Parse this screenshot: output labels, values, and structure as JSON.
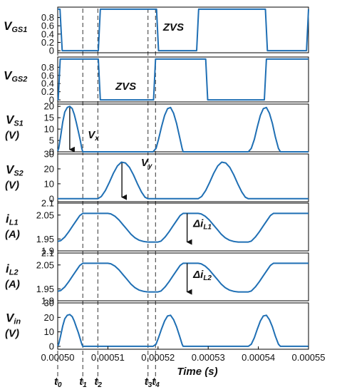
{
  "chart_data": {
    "type": "line",
    "xlabel": "Time (s)",
    "xlim": [
      0.0005,
      0.00055
    ],
    "x_ticks": [
      0.0005,
      0.00051,
      0.00052,
      0.00053,
      0.00054,
      0.00055
    ],
    "x_tick_labels": [
      "0.00050",
      "0.00051",
      "0.00052",
      "0.00053",
      "0.00054",
      "0.00055"
    ],
    "line_color": "#1f6fb4",
    "time_markers": [
      {
        "name": "t0",
        "sub": "0",
        "x": 0.0005
      },
      {
        "name": "t1",
        "sub": "1",
        "x": 0.000505
      },
      {
        "name": "t2",
        "sub": "2",
        "x": 0.000508
      },
      {
        "name": "t3",
        "sub": "3",
        "x": 0.000518
      },
      {
        "name": "t4",
        "sub": "4",
        "x": 0.0005195
      }
    ],
    "panels": [
      {
        "id": "vgs1",
        "label_main": "V",
        "label_sub": "GS1",
        "unit": "",
        "ylim": [
          -0.05,
          1.05
        ],
        "y_ticks": [
          0,
          0.2,
          0.4,
          0.6,
          0.8
        ],
        "y_tick_labels": [
          "0",
          "0.2",
          "0.4",
          "0.6",
          "0.8"
        ],
        "x": [
          0.0005,
          0.00050045,
          0.0005009,
          0.0005081,
          0.0005085,
          0.0005197,
          0.0005201,
          0.0005277,
          0.0005281,
          0.0005414,
          0.0005418,
          0.0005496,
          0.00055
        ],
        "y": [
          1,
          1,
          0,
          0,
          1,
          1,
          0,
          0,
          1,
          1,
          0,
          0,
          1
        ]
      },
      {
        "id": "vgs2",
        "label_main": "V",
        "label_sub": "GS2",
        "unit": "",
        "ylim": [
          -0.05,
          1.05
        ],
        "y_ticks": [
          0,
          0.2,
          0.4,
          0.6,
          0.8
        ],
        "y_tick_labels": [
          "0",
          "0.2",
          "0.4",
          "0.6",
          "0.8"
        ],
        "x": [
          0.0005,
          0.0005001,
          0.0005005,
          0.0005081,
          0.0005085,
          0.0005191,
          0.0005195,
          0.0005295,
          0.0005299,
          0.0005412,
          0.0005416,
          0.00055
        ],
        "y": [
          0,
          0,
          1,
          1,
          0,
          0,
          1,
          1,
          0,
          0,
          1,
          1
        ]
      },
      {
        "id": "vs1",
        "label_main": "V",
        "label_sub": "S1",
        "unit": "(V)",
        "ylim": [
          0,
          21
        ],
        "y_ticks": [
          0,
          5,
          10,
          15,
          20
        ],
        "y_tick_labels": [
          "0",
          "5",
          "10",
          "15",
          "20"
        ],
        "x": [
          0.0005,
          0.0005002,
          0.0005006,
          0.000501,
          0.0005014,
          0.0005019,
          0.0005024,
          0.0005029,
          0.0005033,
          0.0005037,
          0.0005041,
          0.0005045,
          0.0005048,
          0.000505,
          0.00051,
          0.000519,
          0.0005196,
          0.0005201,
          0.0005207,
          0.0005213,
          0.0005219,
          0.0005225,
          0.0005231,
          0.0005237,
          0.0005243,
          0.0005248,
          0.000525,
          0.000538,
          0.0005386,
          0.0005392,
          0.0005398,
          0.0005404,
          0.000541,
          0.0005416,
          0.0005422,
          0.0005428,
          0.0005434,
          0.000544,
          0.0005444,
          0.00055
        ],
        "y": [
          0.3,
          1.5,
          7,
          13,
          17.5,
          19.5,
          20,
          19,
          16.5,
          13,
          9,
          5,
          1.5,
          0,
          0,
          0,
          1.5,
          5.5,
          11,
          16,
          19,
          19.5,
          17,
          12.5,
          6.5,
          1.5,
          0,
          0,
          1.5,
          5.5,
          11,
          16,
          19,
          19.5,
          17,
          12.5,
          6.5,
          1.5,
          0,
          0
        ]
      },
      {
        "id": "vs2",
        "label_main": "V",
        "label_sub": "S2",
        "unit": "(V)",
        "ylim": [
          -2,
          30
        ],
        "y_ticks": [
          0,
          10,
          20,
          30
        ],
        "y_tick_labels": [
          "0",
          "10",
          "20",
          "30"
        ],
        "x": [
          0.0005,
          0.000508,
          0.0005087,
          0.0005095,
          0.0005103,
          0.0005111,
          0.0005119,
          0.0005127,
          0.0005135,
          0.0005143,
          0.0005151,
          0.0005159,
          0.0005167,
          0.0005174,
          0.000518,
          0.000528,
          0.0005287,
          0.0005295,
          0.0005303,
          0.0005311,
          0.0005319,
          0.0005327,
          0.0005335,
          0.0005343,
          0.0005351,
          0.0005359,
          0.0005367,
          0.0005374,
          0.000538,
          0.00055
        ],
        "y": [
          0,
          0,
          1.5,
          5.5,
          11,
          17,
          22,
          24.5,
          24,
          21,
          16,
          10,
          4.5,
          1,
          0,
          0,
          1.5,
          5.5,
          11,
          17,
          22,
          24.5,
          24,
          21,
          16,
          10,
          4.5,
          1,
          0,
          0
        ]
      },
      {
        "id": "il1",
        "label_main": "i",
        "label_sub": "L1",
        "unit": "(A)",
        "ylim": [
          1.9,
          2.1
        ],
        "y_ticks": [
          1.9,
          1.95,
          2.05,
          2.1
        ],
        "y_tick_labels": [
          "1.9",
          "1.95",
          "2.05",
          "2.1"
        ],
        "x": [
          0.0005,
          0.0005006,
          0.0005014,
          0.0005022,
          0.000503,
          0.0005038,
          0.0005044,
          0.000505,
          0.00051,
          0.0005106,
          0.0005114,
          0.0005122,
          0.000513,
          0.0005138,
          0.0005146,
          0.0005154,
          0.0005162,
          0.000517,
          0.0005176,
          0.000518,
          0.00052,
          0.0005206,
          0.0005214,
          0.0005222,
          0.000523,
          0.0005238,
          0.0005244,
          0.000525,
          0.000528,
          0.0005286,
          0.0005294,
          0.0005302,
          0.000531,
          0.0005318,
          0.0005326,
          0.0005334,
          0.0005342,
          0.000535,
          0.0005356,
          0.000536,
          0.000538,
          0.0005386,
          0.0005394,
          0.0005402,
          0.000541,
          0.0005418,
          0.0005424,
          0.000543,
          0.00055
        ],
        "y": [
          1.94,
          1.943,
          1.958,
          1.98,
          2.005,
          2.03,
          2.048,
          2.057,
          2.057,
          2.055,
          2.045,
          2.03,
          2.01,
          1.99,
          1.97,
          1.955,
          1.945,
          1.94,
          1.938,
          1.937,
          1.937,
          1.941,
          1.958,
          1.98,
          2.005,
          2.03,
          2.048,
          2.057,
          2.057,
          2.055,
          2.045,
          2.03,
          2.01,
          1.99,
          1.97,
          1.955,
          1.945,
          1.94,
          1.938,
          1.937,
          1.937,
          1.941,
          1.958,
          1.98,
          2.005,
          2.03,
          2.048,
          2.057,
          2.057
        ]
      },
      {
        "id": "il2",
        "label_main": "i",
        "label_sub": "L2",
        "unit": "(A)",
        "ylim": [
          1.9,
          2.1
        ],
        "y_ticks": [
          1.9,
          1.95,
          2.05,
          2.1
        ],
        "y_tick_labels": [
          "1.9",
          "1.95",
          "2.05",
          "2.1"
        ],
        "x": [
          0.0005,
          0.0005006,
          0.0005014,
          0.0005022,
          0.000503,
          0.0005038,
          0.0005044,
          0.000505,
          0.00051,
          0.0005106,
          0.0005114,
          0.0005122,
          0.000513,
          0.0005138,
          0.0005146,
          0.0005154,
          0.0005162,
          0.000517,
          0.0005176,
          0.000518,
          0.00052,
          0.0005206,
          0.0005214,
          0.0005222,
          0.000523,
          0.0005238,
          0.0005244,
          0.000525,
          0.000528,
          0.0005286,
          0.0005294,
          0.0005302,
          0.000531,
          0.0005318,
          0.0005326,
          0.0005334,
          0.0005342,
          0.000535,
          0.0005356,
          0.000536,
          0.000538,
          0.0005386,
          0.0005394,
          0.0005402,
          0.000541,
          0.0005418,
          0.0005424,
          0.000543,
          0.00055
        ],
        "y": [
          1.94,
          1.943,
          1.958,
          1.98,
          2.005,
          2.03,
          2.048,
          2.057,
          2.057,
          2.055,
          2.045,
          2.03,
          2.01,
          1.99,
          1.97,
          1.955,
          1.945,
          1.94,
          1.938,
          1.937,
          1.937,
          1.941,
          1.958,
          1.98,
          2.005,
          2.03,
          2.048,
          2.057,
          2.057,
          2.055,
          2.045,
          2.03,
          2.01,
          1.99,
          1.97,
          1.955,
          1.945,
          1.94,
          1.938,
          1.937,
          1.937,
          1.941,
          1.958,
          1.98,
          2.005,
          2.03,
          2.048,
          2.057,
          2.057
        ]
      },
      {
        "id": "vin",
        "label_main": "V",
        "label_sub": "in",
        "unit": "(V)",
        "ylim": [
          -2,
          30
        ],
        "y_ticks": [
          0,
          10,
          20,
          30
        ],
        "y_tick_labels": [
          "0",
          "10",
          "20",
          "30"
        ],
        "x": [
          0.0005,
          0.0005002,
          0.0005006,
          0.000501,
          0.0005014,
          0.0005019,
          0.0005024,
          0.0005029,
          0.0005033,
          0.0005037,
          0.0005041,
          0.0005045,
          0.0005048,
          0.000505,
          0.000519,
          0.0005196,
          0.0005201,
          0.0005207,
          0.0005213,
          0.0005219,
          0.0005225,
          0.0005231,
          0.0005237,
          0.0005243,
          0.0005248,
          0.000525,
          0.000538,
          0.0005386,
          0.0005392,
          0.0005398,
          0.0005404,
          0.000541,
          0.0005416,
          0.0005422,
          0.0005428,
          0.0005434,
          0.000544,
          0.0005444,
          0.00055
        ],
        "y": [
          0.3,
          1.5,
          7.5,
          14,
          19,
          21.5,
          22,
          20.5,
          17.5,
          13.5,
          9.5,
          5,
          1.5,
          0,
          0,
          1.5,
          6,
          12,
          17.5,
          21,
          21.5,
          18.5,
          13.5,
          7,
          1.5,
          0,
          0,
          1.5,
          6,
          12,
          17.5,
          21,
          21.5,
          18.5,
          13.5,
          7,
          1.5,
          0,
          0
        ]
      }
    ],
    "annotations": [
      {
        "panel": "vgs1",
        "text": "ZVS",
        "sub": "",
        "x": 0.000521,
        "y": 0.48
      },
      {
        "panel": "vgs2",
        "text": "ZVS",
        "sub": "",
        "x": 0.0005115,
        "y": 0.25
      },
      {
        "panel": "vs1",
        "text": "V",
        "sub": "x",
        "x": 0.000506,
        "y": 6
      },
      {
        "panel": "vs2",
        "text": "V",
        "sub": "y",
        "x": 0.0005166,
        "y": 22
      },
      {
        "panel": "il1",
        "text": "Δi",
        "sub": "L1",
        "x": 0.000527,
        "y": 2.0
      },
      {
        "panel": "il2",
        "text": "Δi",
        "sub": "L2",
        "x": 0.000527,
        "y": 1.995
      }
    ],
    "arrows": [
      {
        "panel": "vs1",
        "x": 0.0005024,
        "y_from": 19.5,
        "y_to": 1.0
      },
      {
        "panel": "vs2",
        "x": 0.0005128,
        "y_from": 24.0,
        "y_to": 1.0
      },
      {
        "panel": "il1",
        "x": 0.0005258,
        "y_from": 2.057,
        "y_to": 1.937
      },
      {
        "panel": "il2",
        "x": 0.0005258,
        "y_from": 2.057,
        "y_to": 1.937
      }
    ]
  }
}
